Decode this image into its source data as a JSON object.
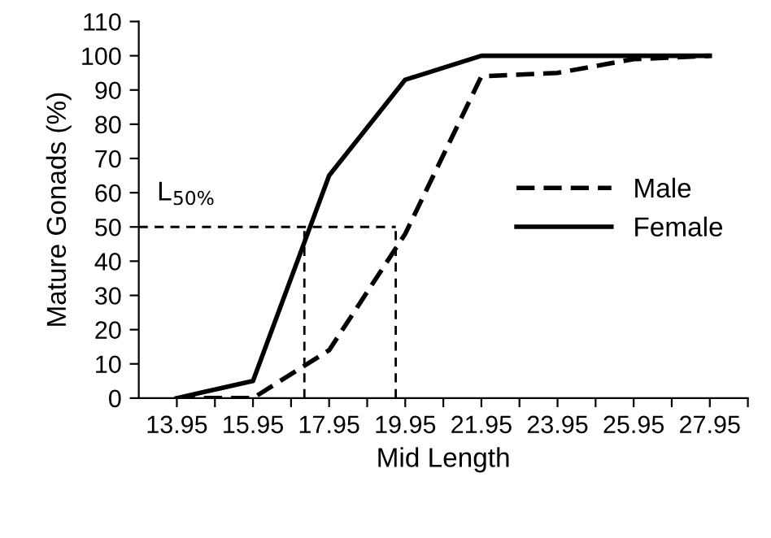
{
  "chart_data": {
    "type": "line",
    "xlabel": "Mid Length",
    "ylabel": "Mature Gonads (%)",
    "annotations": [
      "L$_{50%}$"
    ],
    "series": [
      {
        "name": "Male",
        "color": "#000000",
        "line_style": "dashed",
        "x": [
          13.95,
          15.95,
          17.95,
          19.95,
          21.95,
          23.95,
          25.95,
          27.95
        ],
        "values": [
          0,
          0,
          14,
          48,
          94,
          95,
          99,
          100
        ]
      },
      {
        "name": "Female",
        "color": "#000000",
        "line_style": "solid",
        "x": [
          13.95,
          15.95,
          17.95,
          19.95,
          21.95,
          23.95,
          25.95,
          27.95
        ],
        "values": [
          0,
          5,
          65,
          93,
          100,
          100,
          100,
          100
        ]
      },
      {
        "color": "#000000",
        "line_style": "dashed",
        "x": [
          12.95,
          19.7
        ],
        "values": [
          50,
          50
        ]
      },
      {
        "color": "#000000",
        "line_style": "dashed",
        "x": [
          17.3,
          17.3
        ],
        "values": [
          0,
          50
        ]
      },
      {
        "color": "#000000",
        "line_style": "dashed",
        "x": [
          19.7,
          19.7
        ],
        "values": [
          0,
          50
        ]
      }
    ],
    "xlim": [
      12.95,
      28.95
    ],
    "xticks": [
      13.95,
      {
        "value": 14.95,
        "label": null
      },
      15.95,
      {
        "value": 16.95,
        "label": null
      },
      17.95,
      {
        "value": 18.95,
        "label": null
      },
      19.95,
      {
        "value": 20.95,
        "label": null
      },
      21.95,
      {
        "value": 22.95,
        "label": null
      },
      23.95,
      {
        "value": 24.95,
        "label": null
      },
      25.95,
      {
        "value": 26.95,
        "label": null
      },
      27.95,
      {
        "value": 28.95,
        "label": null
      }
    ],
    "ylim": [
      0,
      110
    ],
    "yticks": [
      0,
      10,
      20,
      30,
      40,
      50,
      60,
      70,
      80,
      90,
      100,
      110
    ],
    "grid": false,
    "legend": "right",
    "marker": "none"
  }
}
